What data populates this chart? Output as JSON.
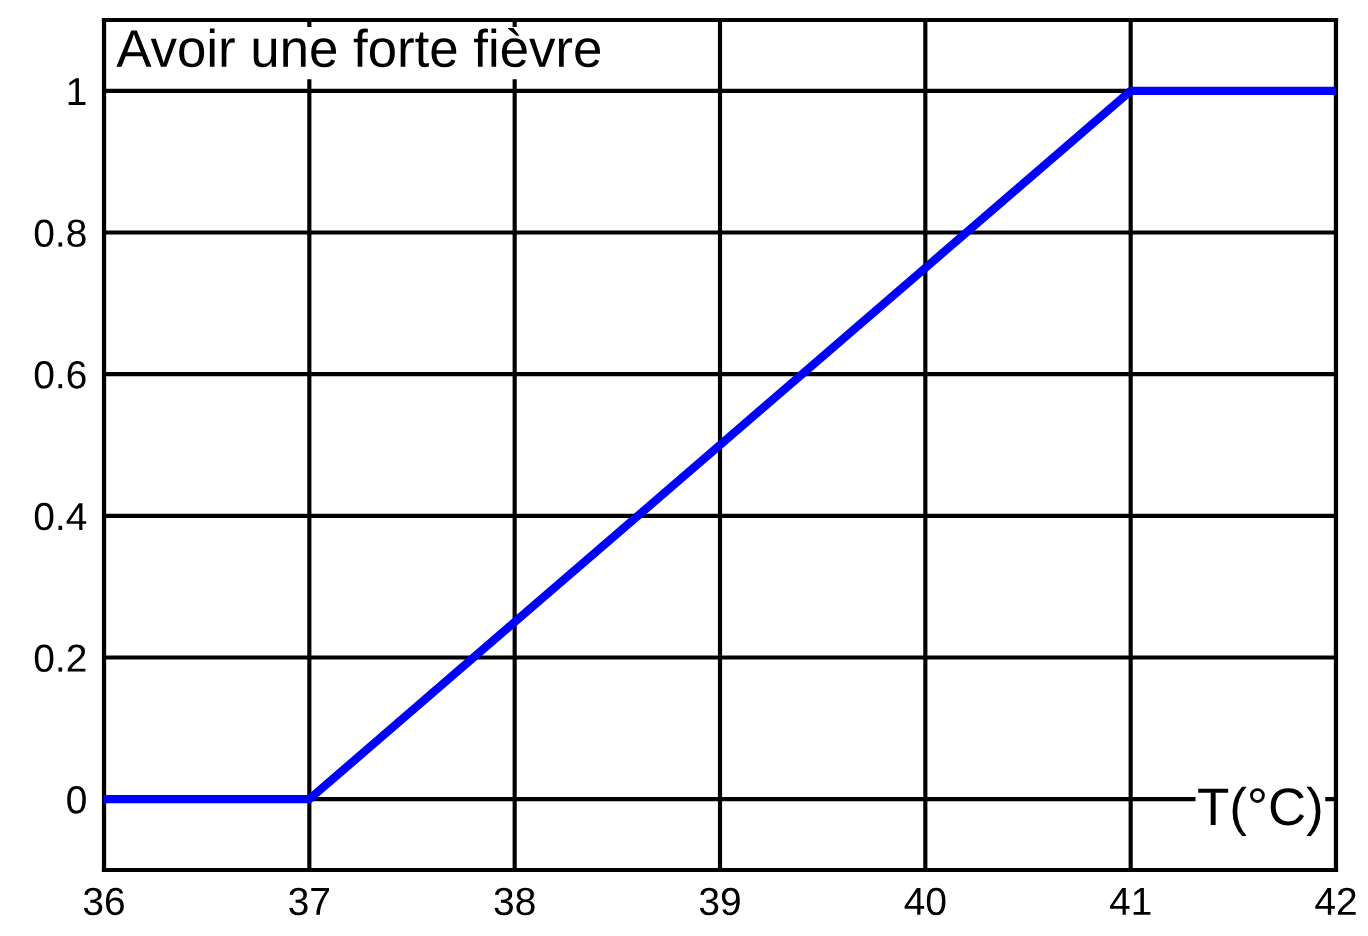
{
  "chart_data": {
    "type": "line",
    "title": "Avoir une forte fièvre",
    "xlabel": "T(°C)",
    "x": [
      36,
      37,
      41,
      42
    ],
    "series": [
      {
        "color": "#0000ff",
        "values": [
          0,
          0,
          1,
          1
        ]
      }
    ],
    "xlim": [
      36,
      42
    ],
    "ylim": [
      -0.1,
      1.1
    ],
    "xticks": [
      36,
      37,
      38,
      39,
      40,
      41,
      42
    ],
    "yticks": [
      0,
      0.2,
      0.4,
      0.6,
      0.8,
      1
    ],
    "grid": true,
    "line_style": "solid",
    "marker": "none"
  }
}
